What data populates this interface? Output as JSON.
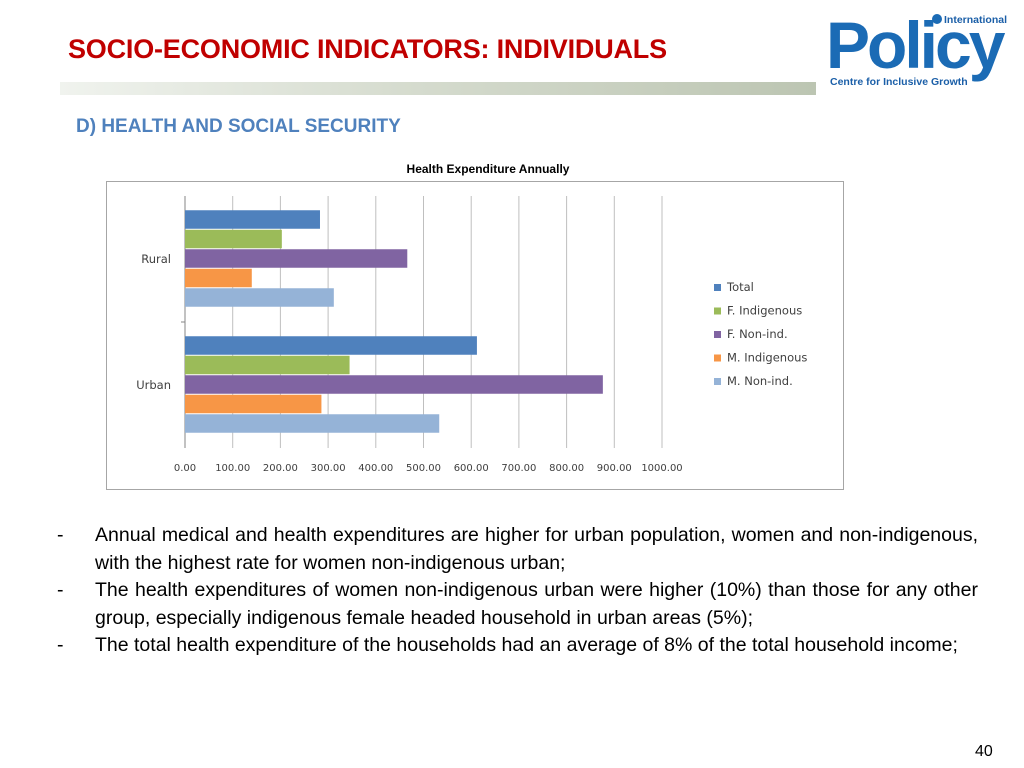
{
  "slide": {
    "title": "SOCIO-ECONOMIC INDICATORS: INDIVIDUALS",
    "subtitle": "D) HEALTH AND SOCIAL SECURITY",
    "page_number": "40"
  },
  "logo": {
    "intl": "International",
    "name": "Policy",
    "sub": "Centre for Inclusive Growth",
    "color": "#1b6bb5"
  },
  "chart_data": {
    "type": "bar",
    "orientation": "horizontal",
    "title": "Health Expenditure Annually",
    "categories": [
      "Rural",
      "Urban"
    ],
    "series": [
      {
        "name": "Total",
        "color": "#4f81bd",
        "values": [
          283,
          612
        ]
      },
      {
        "name": "F. Indigenous",
        "color": "#9bbb59",
        "values": [
          203,
          345
        ]
      },
      {
        "name": "F. Non-ind.",
        "color": "#8064a2",
        "values": [
          466,
          876
        ]
      },
      {
        "name": "M. Indigenous",
        "color": "#f79646",
        "values": [
          140,
          286
        ]
      },
      {
        "name": "M. Non-ind.",
        "color": "#95b3d7",
        "values": [
          312,
          533
        ]
      }
    ],
    "xlim": [
      0,
      1000
    ],
    "xticks": [
      "0.00",
      "100.00",
      "200.00",
      "300.00",
      "400.00",
      "500.00",
      "600.00",
      "700.00",
      "800.00",
      "900.00",
      "1000.00"
    ],
    "grid": true,
    "legend": "right"
  },
  "bullets": [
    {
      "dash": "-",
      "text": "Annual medical and health expenditures are higher for urban population, women and non-indigenous, with the highest rate for women non-indigenous urban;"
    },
    {
      "dash": "-",
      "text": "The  health expenditures of women non-indigenous urban were higher (10%) than those for any other group, especially indigenous female headed household in urban areas (5%);"
    },
    {
      "dash": "-",
      "text": "The total health expenditure of the households had an average of 8% of the total household income;"
    }
  ]
}
